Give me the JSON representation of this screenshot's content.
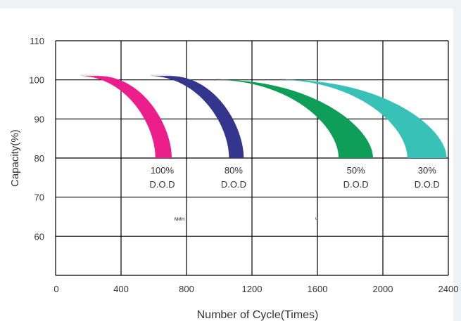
{
  "chart_data": {
    "type": "area",
    "xlabel": "Number of Cycle(Times)",
    "ylabel": "Capacity(%)",
    "xlim": [
      0,
      2400
    ],
    "ylim": [
      50,
      110
    ],
    "x_ticks": [
      0,
      400,
      800,
      1200,
      1600,
      2000,
      2400
    ],
    "y_ticks": [
      60,
      70,
      80,
      90,
      100,
      110
    ],
    "grid": true,
    "series": [
      {
        "name": "100% D.O.D",
        "label_lines": [
          "100%",
          "D.O.D"
        ],
        "color": "#ec1e8c",
        "start": 150,
        "knee": 260,
        "inner_end": 610,
        "outer_end": 710,
        "top": 101,
        "end_capacity": 80
      },
      {
        "name": "80% D.O.D",
        "label_lines": [
          "80%",
          "D.O.D"
        ],
        "color": "#34368d",
        "start": 580,
        "knee": 700,
        "inner_end": 1060,
        "outer_end": 1150,
        "top": 101,
        "end_capacity": 80
      },
      {
        "name": "50% D.O.D",
        "label_lines": [
          "50%",
          "D.O.D"
        ],
        "color": "#0f9e57",
        "start": 980,
        "knee": 1000,
        "inner_end": 1730,
        "outer_end": 1940,
        "top": 100,
        "end_capacity": 80
      },
      {
        "name": "30% D.O.D",
        "label_lines": [
          "30%",
          "D.O.D"
        ],
        "color": "#37c1b7",
        "start": 1370,
        "knee": 1400,
        "inner_end": 2150,
        "outer_end": 2390,
        "top": 100,
        "end_capacity": 80
      }
    ],
    "annotations": [
      "мин",
      "ч"
    ]
  }
}
